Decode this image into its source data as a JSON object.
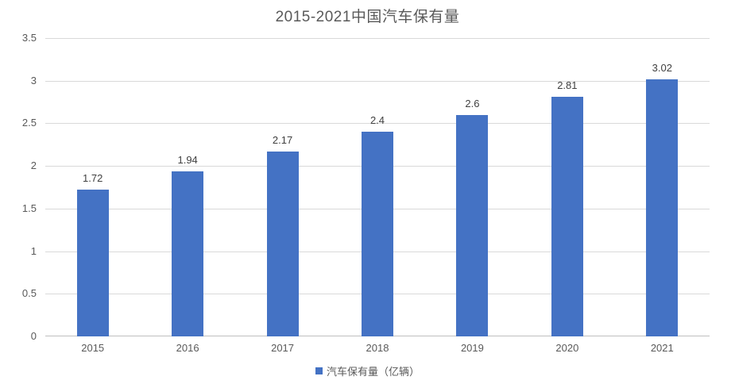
{
  "chart_data": {
    "type": "bar",
    "title": "2015-2021中国汽车保有量",
    "categories": [
      "2015",
      "2016",
      "2017",
      "2018",
      "2019",
      "2020",
      "2021"
    ],
    "series": [
      {
        "name": "汽车保有量（亿辆）",
        "values": [
          1.72,
          1.94,
          2.17,
          2.4,
          2.6,
          2.81,
          3.02
        ],
        "value_labels": [
          "1.72",
          "1.94",
          "2.17",
          "2.4",
          "2.6",
          "2.81",
          "3.02"
        ]
      }
    ],
    "legend_label": "汽车保有量（亿辆）",
    "legend_position": "bottom",
    "xlabel": "",
    "ylabel": "",
    "ylim": [
      0,
      3.5
    ],
    "ytick_labels": [
      "0",
      "0.5",
      "1",
      "1.5",
      "2",
      "2.5",
      "3",
      "3.5"
    ],
    "grid": true,
    "colors": {
      "bar": "#4472C4",
      "gridline": "#D9D9D9",
      "axis_line": "#BFBFBF",
      "title_text": "#595959",
      "tick_text": "#595959",
      "data_label_text": "#404040",
      "background": "#FFFFFF"
    }
  }
}
